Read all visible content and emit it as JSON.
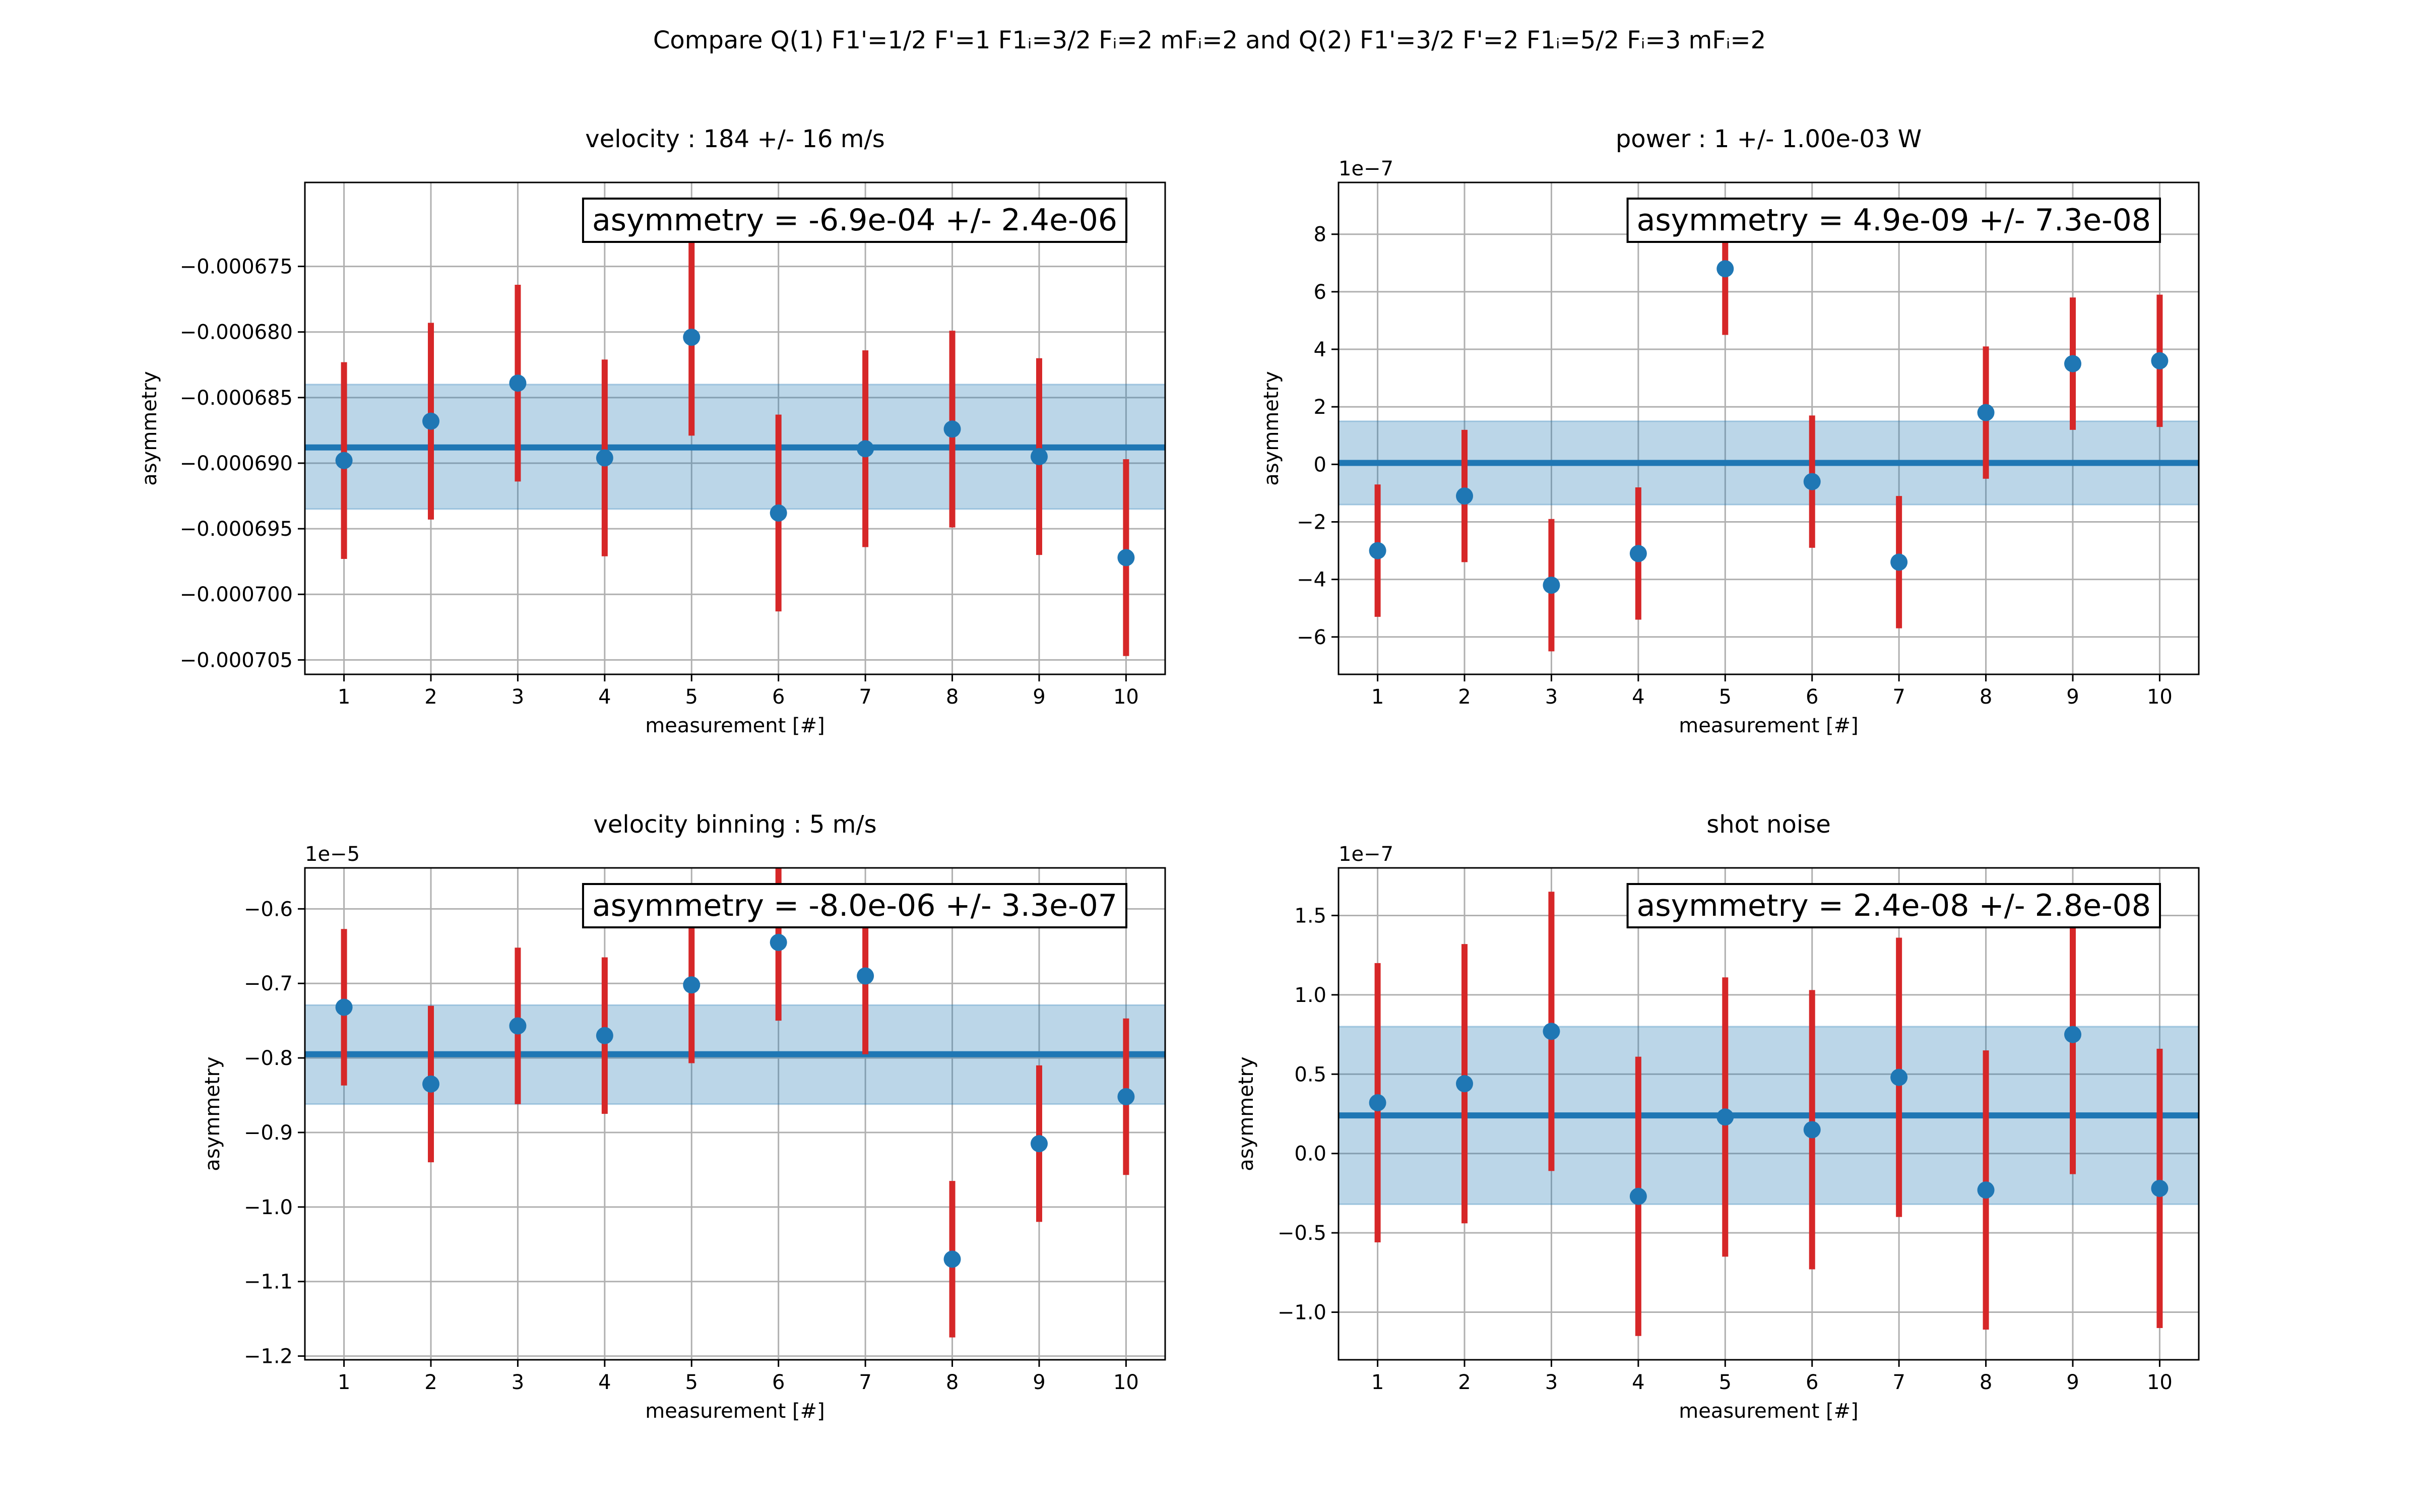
{
  "figure_title": "Compare Q(1) F1'=1/2 F'=1 F1ᵢ=3/2 Fᵢ=2 mFᵢ=2 and Q(2) F1'=3/2 F'=2 F1ᵢ=5/2 Fᵢ=3 mFᵢ=2",
  "colors": {
    "points": "#1f77b4",
    "errorbars": "#d62728",
    "mean_line": "#1f77b4",
    "band": "#1f77b4",
    "grid": "#b0b0b0"
  },
  "chart_data": [
    {
      "type": "scatter",
      "title": "velocity : 184 +/- 16 m/s",
      "xlabel": "measurement [#]",
      "ylabel": "asymmetry",
      "annotation": "asymmetry = -6.9e-04 +/- 2.4e-06",
      "offset_text": "",
      "scale": 1,
      "x": [
        1,
        2,
        3,
        4,
        5,
        6,
        7,
        8,
        9,
        10
      ],
      "y": [
        -0.0006898,
        -0.0006868,
        -0.0006839,
        -0.0006896,
        -0.0006804,
        -0.0006938,
        -0.0006889,
        -0.0006874,
        -0.0006895,
        -0.0006972
      ],
      "yerr": [
        7.5e-06,
        7.5e-06,
        7.5e-06,
        7.5e-06,
        7.5e-06,
        7.5e-06,
        7.5e-06,
        7.5e-06,
        7.5e-06,
        7.5e-06
      ],
      "mean": -0.0006888,
      "band": [
        -0.0006935,
        -0.000684
      ],
      "xlim": [
        0.55,
        10.45
      ],
      "ylim": [
        -0.0007061,
        -0.0006686
      ],
      "yticks": [
        -0.000705,
        -0.0007,
        -0.000695,
        -0.00069,
        -0.000685,
        -0.00068,
        -0.000675
      ],
      "ytick_labels": [
        "−0.000705",
        "−0.000700",
        "−0.000695",
        "−0.000690",
        "−0.000685",
        "−0.000680",
        "−0.000675"
      ],
      "xticks": [
        1,
        2,
        3,
        4,
        5,
        6,
        7,
        8,
        9,
        10
      ],
      "grid": true
    },
    {
      "type": "scatter",
      "title": "power : 1 +/- 1.00e-03 W",
      "xlabel": "measurement [#]",
      "ylabel": "asymmetry",
      "annotation": "asymmetry = 4.9e-09 +/- 7.3e-08",
      "offset_text": "1e−7",
      "scale": 1e-07,
      "x": [
        1,
        2,
        3,
        4,
        5,
        6,
        7,
        8,
        9,
        10
      ],
      "y": [
        -3e-07,
        -1.1e-07,
        -4.2e-07,
        -3.1e-07,
        6.8e-07,
        -6e-08,
        -3.4e-07,
        1.8e-07,
        3.5e-07,
        3.6e-07
      ],
      "yerr": [
        2.3e-07,
        2.3e-07,
        2.3e-07,
        2.3e-07,
        2.3e-07,
        2.3e-07,
        2.3e-07,
        2.3e-07,
        2.3e-07,
        2.3e-07
      ],
      "mean": 5e-09,
      "band": [
        -1.4e-07,
        1.5e-07
      ],
      "xlim": [
        0.55,
        10.45
      ],
      "ylim": [
        -7.3e-07,
        9.8e-07
      ],
      "yticks": [
        -6e-07,
        -4e-07,
        -2e-07,
        0,
        2e-07,
        4e-07,
        6e-07,
        8e-07
      ],
      "ytick_labels": [
        "−6",
        "−4",
        "−2",
        "0",
        "2",
        "4",
        "6",
        "8"
      ],
      "xticks": [
        1,
        2,
        3,
        4,
        5,
        6,
        7,
        8,
        9,
        10
      ],
      "grid": true
    },
    {
      "type": "scatter",
      "title": "velocity binning : 5 m/s",
      "xlabel": "measurement [#]",
      "ylabel": "asymmetry",
      "annotation": "asymmetry = -8.0e-06 +/- 3.3e-07",
      "offset_text": "1e−5",
      "scale": 1e-05,
      "x": [
        1,
        2,
        3,
        4,
        5,
        6,
        7,
        8,
        9,
        10
      ],
      "y": [
        -7.32e-06,
        -8.35e-06,
        -7.57e-06,
        -7.7e-06,
        -7.02e-06,
        -6.45e-06,
        -6.9e-06,
        -1.07e-05,
        -9.15e-06,
        -8.52e-06
      ],
      "yerr": [
        1.05e-06,
        1.05e-06,
        1.05e-06,
        1.05e-06,
        1.05e-06,
        1.05e-06,
        1.05e-06,
        1.05e-06,
        1.05e-06,
        1.05e-06
      ],
      "mean": -7.95e-06,
      "band": [
        -8.62e-06,
        -7.29e-06
      ],
      "xlim": [
        0.55,
        10.45
      ],
      "ylim": [
        -1.205e-05,
        -5.45e-06
      ],
      "yticks": [
        -1.2e-05,
        -1.1e-05,
        -1e-05,
        -9e-06,
        -8e-06,
        -7e-06,
        -6e-06
      ],
      "ytick_labels": [
        "−1.2",
        "−1.1",
        "−1.0",
        "−0.9",
        "−0.8",
        "−0.7",
        "−0.6"
      ],
      "xticks": [
        1,
        2,
        3,
        4,
        5,
        6,
        7,
        8,
        9,
        10
      ],
      "grid": true
    },
    {
      "type": "scatter",
      "title": "shot noise",
      "xlabel": "measurement [#]",
      "ylabel": "asymmetry",
      "annotation": "asymmetry = 2.4e-08 +/- 2.8e-08",
      "offset_text": "1e−7",
      "scale": 1e-07,
      "x": [
        1,
        2,
        3,
        4,
        5,
        6,
        7,
        8,
        9,
        10
      ],
      "y": [
        3.2e-08,
        4.4e-08,
        7.7e-08,
        -2.7e-08,
        2.3e-08,
        1.5e-08,
        4.8e-08,
        -2.3e-08,
        7.5e-08,
        -2.2e-08
      ],
      "yerr": [
        8.8e-08,
        8.8e-08,
        8.8e-08,
        8.8e-08,
        8.8e-08,
        8.8e-08,
        8.8e-08,
        8.8e-08,
        8.8e-08,
        8.8e-08
      ],
      "mean": 2.4e-08,
      "band": [
        -3.2e-08,
        8e-08
      ],
      "xlim": [
        0.55,
        10.45
      ],
      "ylim": [
        -1.3e-07,
        1.8e-07
      ],
      "yticks": [
        -1e-07,
        -5e-08,
        0,
        5e-08,
        1e-07,
        1.5e-07
      ],
      "ytick_labels": [
        "−1.0",
        "−0.5",
        "0.0",
        "0.5",
        "1.0",
        "1.5"
      ],
      "xticks": [
        1,
        2,
        3,
        4,
        5,
        6,
        7,
        8,
        9,
        10
      ],
      "grid": true
    }
  ]
}
